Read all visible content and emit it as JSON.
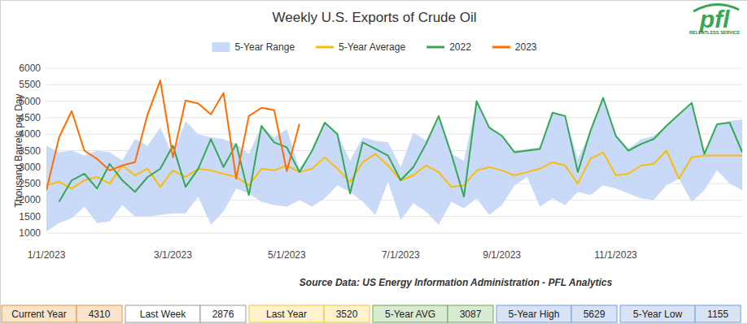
{
  "chart_data": {
    "type": "line",
    "title": "Weekly U.S. Exports of Crude Oil",
    "y_label": "Thousand Barrels per Day",
    "source": "Source Data: US Energy Information Administration - PFL Analytics",
    "categories": [
      "1/1/2023",
      null,
      null,
      null,
      null,
      null,
      null,
      null,
      null,
      null,
      "3/1/2023",
      null,
      null,
      null,
      null,
      null,
      null,
      null,
      null,
      "5/1/2023",
      null,
      null,
      null,
      null,
      null,
      null,
      null,
      null,
      "7/1/2023",
      null,
      null,
      null,
      null,
      null,
      null,
      null,
      "9/1/2023",
      null,
      null,
      null,
      null,
      null,
      null,
      null,
      null,
      "11/1/2023",
      null,
      null,
      null,
      null,
      null,
      null,
      null,
      null,
      null,
      null
    ],
    "series": [
      {
        "name": "5-Year Range",
        "type": "range",
        "color": "#c9daf8",
        "low": [
          1050,
          1300,
          1450,
          1800,
          1300,
          1350,
          1850,
          1500,
          1500,
          1550,
          1600,
          1600,
          2100,
          1250,
          1650,
          2350,
          2200,
          1950,
          1850,
          1800,
          2000,
          1800,
          2050,
          2450,
          2250,
          1950,
          1550,
          2550,
          1400,
          1900,
          1650,
          1250,
          1950,
          1750,
          2050,
          1550,
          1850,
          2450,
          2700,
          1800,
          2050,
          1850,
          2250,
          2150,
          2450,
          2350,
          2200,
          2050,
          2000,
          2450,
          2650,
          1950,
          2300,
          2900,
          2500,
          2300
        ],
        "high": [
          3650,
          3450,
          3500,
          3350,
          3500,
          3450,
          3200,
          3850,
          3650,
          4200,
          3350,
          4400,
          4000,
          3900,
          3850,
          3700,
          3400,
          4250,
          3900,
          4150,
          2950,
          3500,
          4350,
          4000,
          3200,
          3900,
          3800,
          3750,
          3000,
          4050,
          3800,
          4550,
          3400,
          3200,
          5000,
          4200,
          3950,
          3500,
          3550,
          3600,
          4650,
          4550,
          3250,
          4100,
          5100,
          3950,
          3550,
          3850,
          3950,
          4250,
          4600,
          4950,
          3400,
          4300,
          4400,
          4450
        ]
      },
      {
        "name": "5-Year Average",
        "type": "line",
        "color": "#fbbc04",
        "values": [
          2450,
          2550,
          2350,
          2600,
          2700,
          2500,
          3050,
          2750,
          2950,
          2400,
          2900,
          2700,
          2950,
          2900,
          2800,
          2700,
          2450,
          2950,
          2900,
          3050,
          2850,
          2950,
          3300,
          2950,
          2550,
          3150,
          3400,
          3050,
          2600,
          2750,
          3050,
          2850,
          2400,
          2450,
          2900,
          3000,
          2900,
          2750,
          2850,
          2950,
          3150,
          3050,
          2500,
          3250,
          3450,
          2750,
          2800,
          3050,
          3100,
          3500,
          2650,
          3300,
          3350,
          3350,
          3350,
          3350
        ]
      },
      {
        "name": "2022",
        "type": "line",
        "color": "#34a853",
        "values": [
          null,
          1950,
          2600,
          2800,
          2350,
          3100,
          2600,
          2250,
          2700,
          2950,
          3650,
          2400,
          2950,
          3850,
          3000,
          3700,
          2150,
          4250,
          3750,
          3600,
          2850,
          3500,
          4350,
          4000,
          2200,
          3750,
          3550,
          3350,
          2600,
          3000,
          3700,
          4550,
          3400,
          2100,
          5000,
          4200,
          3950,
          3450,
          3500,
          3550,
          4650,
          4550,
          2850,
          4100,
          5100,
          3950,
          3500,
          3700,
          3850,
          4250,
          4600,
          4950,
          3400,
          4300,
          4350,
          3450
        ]
      },
      {
        "name": "2023",
        "type": "line",
        "color": "#ff6d01",
        "values": [
          2300,
          3900,
          4700,
          3500,
          3250,
          2900,
          3050,
          3150,
          4600,
          5629,
          3300,
          5020,
          4930,
          4600,
          5250,
          2650,
          4550,
          4800,
          4730,
          2876,
          4310,
          null,
          null,
          null,
          null,
          null,
          null,
          null,
          null,
          null,
          null,
          null,
          null,
          null,
          null,
          null,
          null,
          null,
          null,
          null,
          null,
          null,
          null,
          null,
          null,
          null,
          null,
          null,
          null,
          null,
          null,
          null,
          null,
          null,
          null,
          null
        ]
      }
    ],
    "ylim": [
      1000,
      6000
    ],
    "yticks": [
      1000,
      1500,
      2000,
      2500,
      3000,
      3500,
      4000,
      4500,
      5000,
      5500,
      6000
    ],
    "grid": true,
    "legend": "top"
  },
  "summary": [
    {
      "label": "Current Year",
      "value": 4310
    },
    {
      "label": "Last Week",
      "value": 2876
    },
    {
      "label": "Last Year",
      "value": 3520
    },
    {
      "label": "5-Year AVG",
      "value": 3087
    },
    {
      "label": "5-Year High",
      "value": 5629
    },
    {
      "label": "5-Year Low",
      "value": 1155
    }
  ],
  "logo": {
    "text": "pfl",
    "tagline": "RELENTLESS SERVICE"
  }
}
